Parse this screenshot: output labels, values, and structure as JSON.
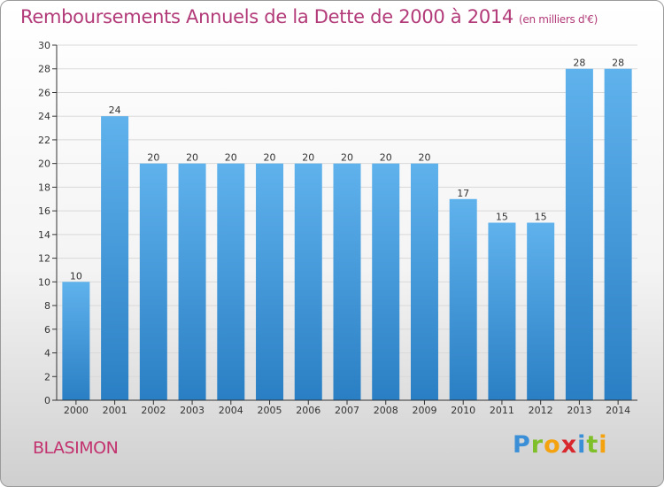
{
  "header": {
    "title": "Remboursements Annuels de la Dette de 2000 à 2014",
    "unit": "(en milliers d'€)"
  },
  "commune": "BLASIMON",
  "logo": {
    "letters": [
      "P",
      "r",
      "o",
      "x",
      "i",
      "t",
      "i"
    ],
    "colors": [
      "#3a8fd6",
      "#7fbf2a",
      "#f4a30f",
      "#d9272e",
      "#3a8fd6",
      "#7fbf2a",
      "#f4a30f"
    ]
  },
  "colors": {
    "bar_light": "#5fb2ec",
    "bar_dark": "#2a7fc4",
    "grid": "#d9d9d9",
    "axis": "#333333"
  },
  "chart_data": {
    "type": "bar",
    "title": "Remboursements Annuels de la Dette de 2000 à 2014",
    "xlabel": "",
    "ylabel": "",
    "categories": [
      "2000",
      "2001",
      "2002",
      "2003",
      "2004",
      "2005",
      "2006",
      "2007",
      "2008",
      "2009",
      "2010",
      "2011",
      "2012",
      "2013",
      "2014"
    ],
    "values": [
      10,
      24,
      20,
      20,
      20,
      20,
      20,
      20,
      20,
      20,
      17,
      15,
      15,
      28,
      28
    ],
    "ylim": [
      0,
      30
    ],
    "yticks": [
      0,
      2,
      4,
      6,
      8,
      10,
      12,
      14,
      16,
      18,
      20,
      22,
      24,
      26,
      28,
      30
    ],
    "grid": true
  }
}
